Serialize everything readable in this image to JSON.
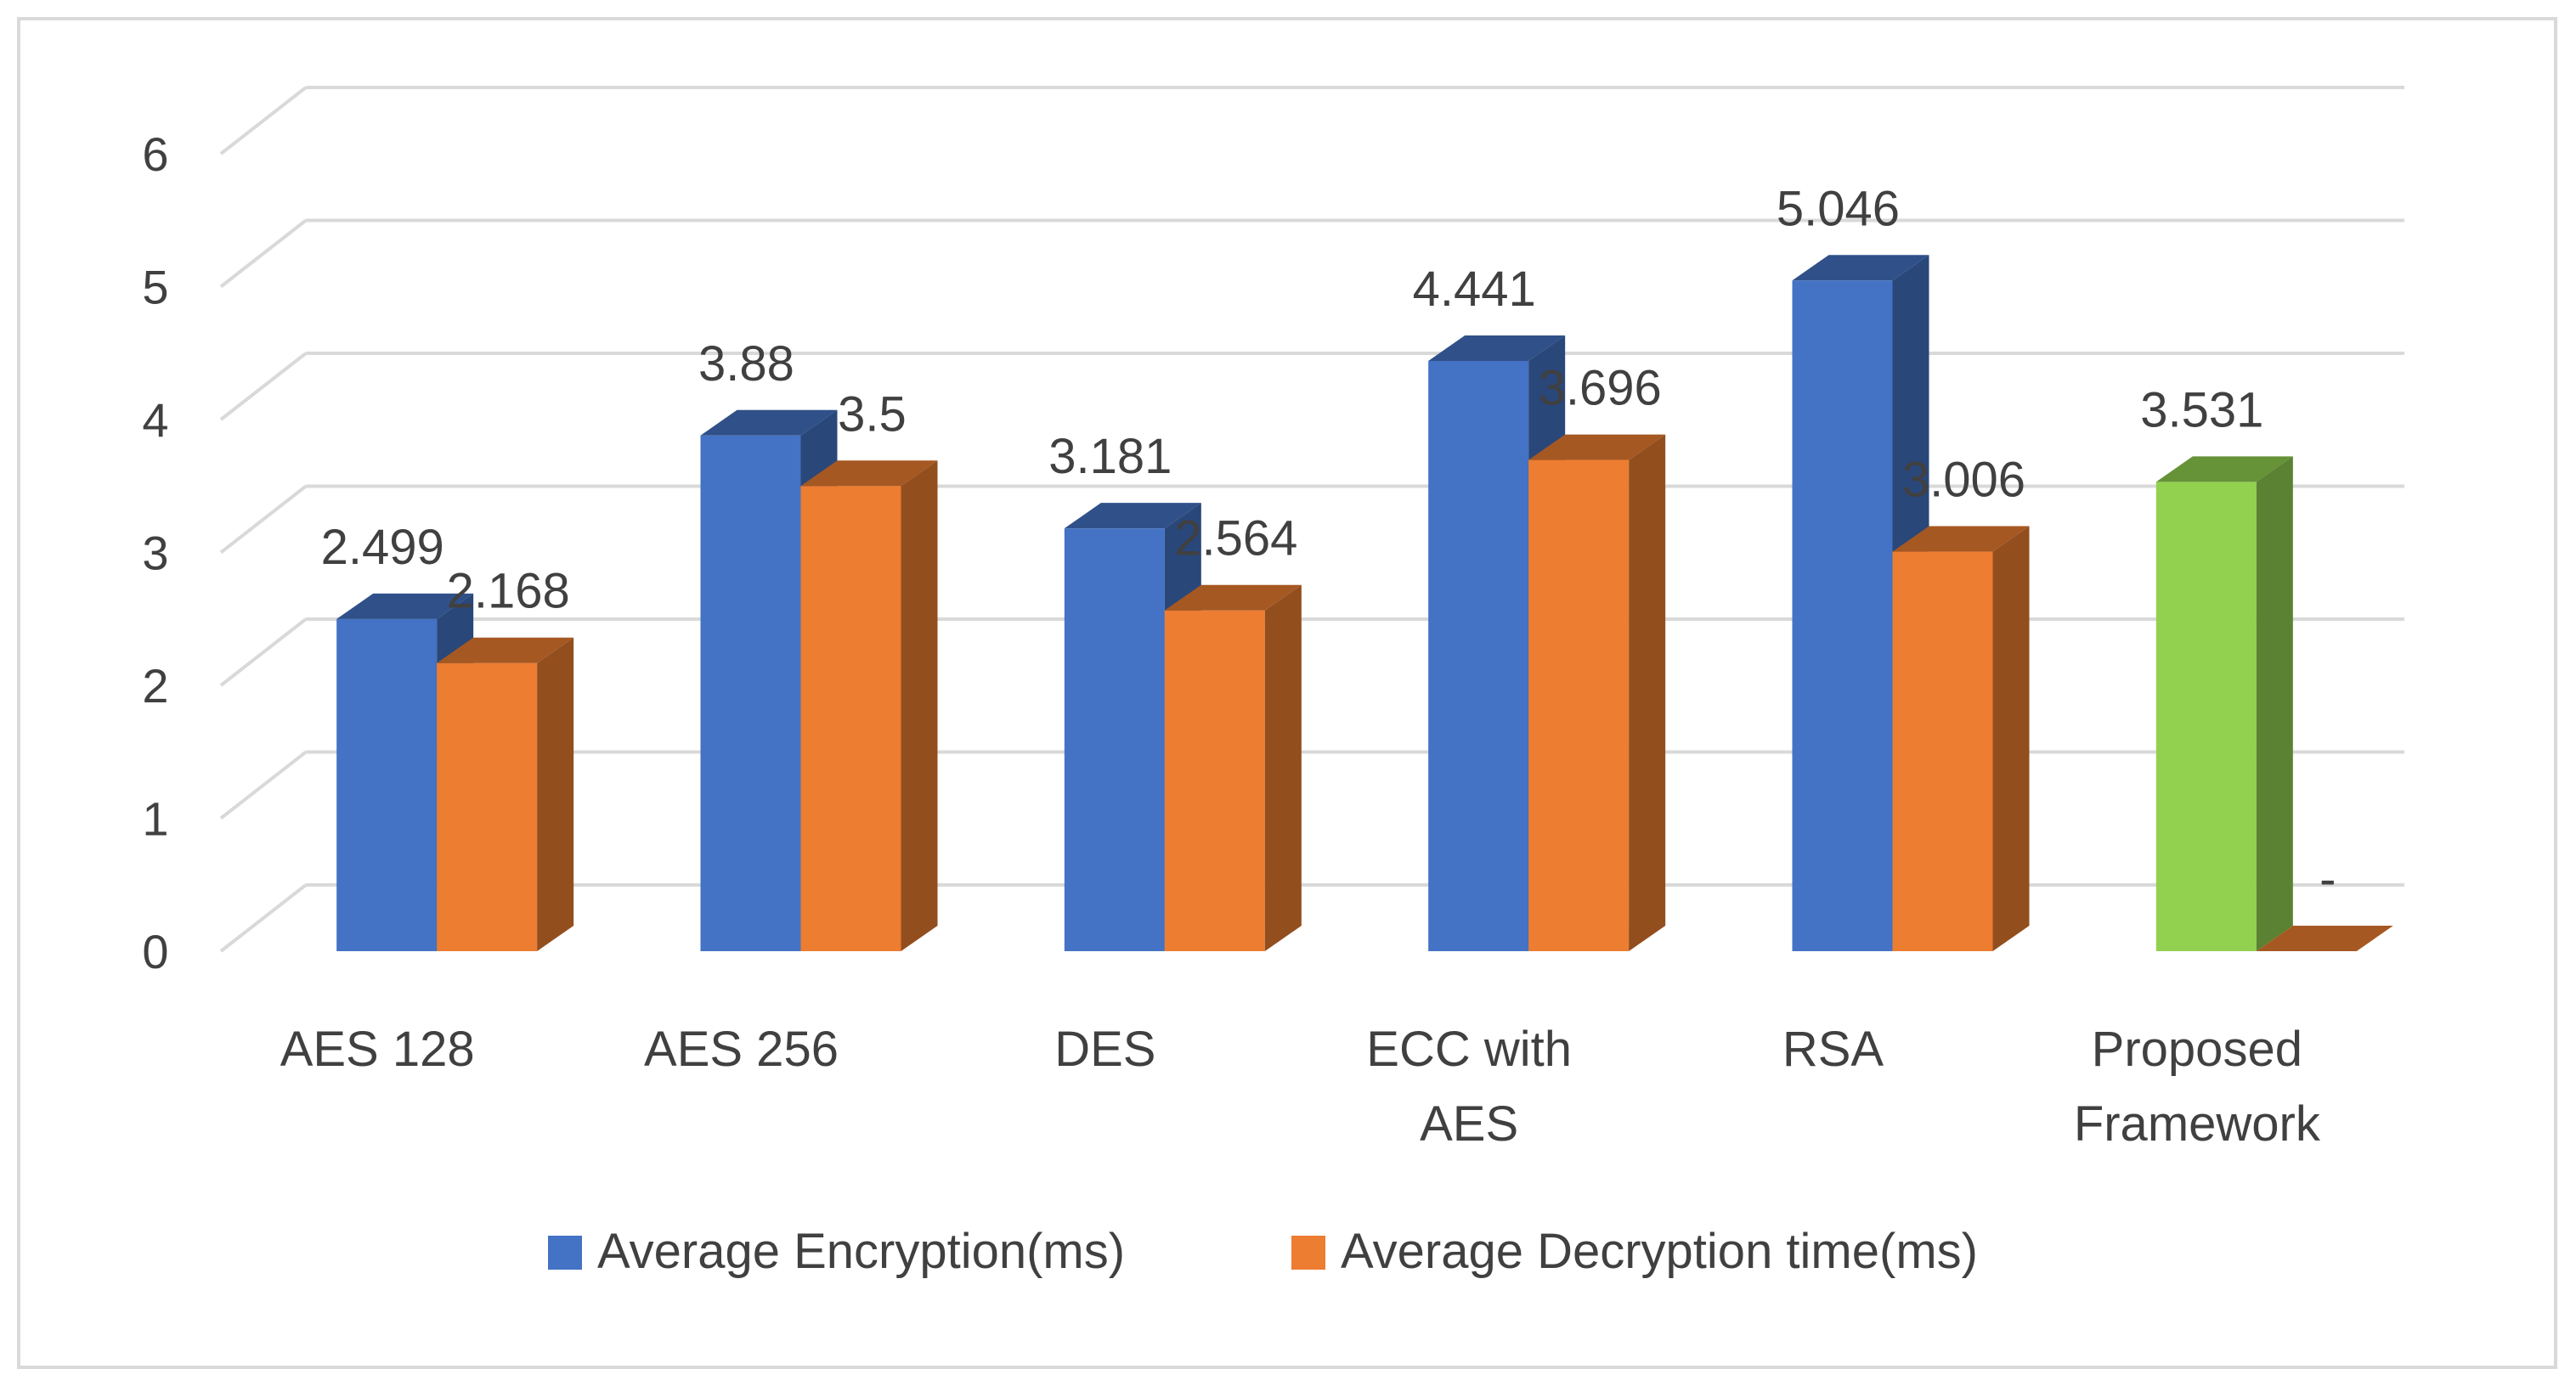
{
  "chart_data": {
    "type": "bar",
    "title": "",
    "xlabel": "",
    "ylabel": "",
    "ylim": [
      0,
      6
    ],
    "yticks": [
      0,
      1,
      2,
      3,
      4,
      5,
      6
    ],
    "grid": true,
    "legend_position": "bottom",
    "categories": [
      [
        "AES 128"
      ],
      [
        "AES 256"
      ],
      [
        "DES"
      ],
      [
        "ECC with",
        "AES"
      ],
      [
        "RSA"
      ],
      [
        "Proposed",
        "Framework"
      ]
    ],
    "series": [
      {
        "name": "Average Encryption(ms)",
        "color": "#4472c4",
        "values": [
          2.499,
          3.88,
          3.181,
          4.441,
          5.046,
          3.531
        ],
        "labels": [
          "2.499",
          "3.88",
          "3.181",
          "4.441",
          "5.046",
          "3.531"
        ],
        "point_colors": [
          null,
          null,
          null,
          null,
          null,
          "#92d050"
        ]
      },
      {
        "name": "Average Decryption time(ms)",
        "color": "#ed7d31",
        "values": [
          2.168,
          3.5,
          2.564,
          3.696,
          3.006,
          0
        ],
        "labels": [
          "2.168",
          "3.5",
          "2.564",
          "3.696",
          "3.006",
          "-"
        ],
        "point_colors": [
          null,
          null,
          null,
          null,
          null,
          null
        ]
      }
    ]
  }
}
